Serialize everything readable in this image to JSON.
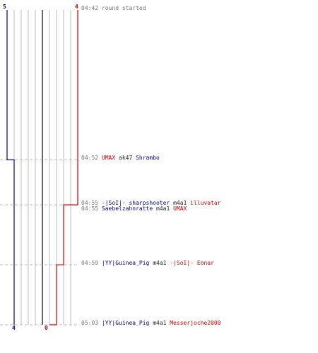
{
  "chart_data": {
    "type": "line",
    "title": "",
    "colors": {
      "team_blue": "#00008b",
      "team_red": "#cc0000",
      "grid": "#bbbbbb",
      "center": "#666666"
    },
    "scores": {
      "blue_start": "5",
      "red_start": "4",
      "blue_end": "4",
      "red_end": "0"
    },
    "event_times_sec": [
      282,
      292,
      295,
      299,
      303
    ],
    "blue_steps": [
      {
        "t": 282,
        "x": 0
      },
      {
        "t": 292,
        "x": 1
      }
    ],
    "red_steps": [
      {
        "t": 282,
        "x": 10
      },
      {
        "t": 295,
        "x": 8
      },
      {
        "t": 299,
        "x": 7
      },
      {
        "t": 303,
        "x": 6
      }
    ],
    "events": [
      {
        "t": 282,
        "time": "04:42",
        "parts": [
          {
            "text": "round started",
            "color": "grey"
          }
        ]
      },
      {
        "t": 292,
        "time": "04:52",
        "parts": [
          {
            "text": "UMAX",
            "color": "red"
          },
          {
            "text": "ak47",
            "color": "dark"
          },
          {
            "text": "Shrambo",
            "color": "blue"
          }
        ]
      },
      {
        "t": 295,
        "time": "04:55",
        "parts": [
          {
            "text": "-|SoI|- sharpshooter",
            "color": "blue"
          },
          {
            "text": "m4a1",
            "color": "dark"
          },
          {
            "text": "illuvatar",
            "color": "red"
          }
        ]
      },
      {
        "t": 295,
        "time": "04:55",
        "parts": [
          {
            "text": "Saebelzahnratte",
            "color": "blue"
          },
          {
            "text": "m4a1",
            "color": "dark"
          },
          {
            "text": "UMAX",
            "color": "red"
          }
        ]
      },
      {
        "t": 299,
        "time": "04:59",
        "parts": [
          {
            "text": "|YY|Guinea_Pig",
            "color": "blue"
          },
          {
            "text": "m4a1",
            "color": "dark"
          },
          {
            "text": "-|SoI|- Eonar",
            "color": "red"
          }
        ]
      },
      {
        "t": 303,
        "time": "05:03",
        "parts": [
          {
            "text": "|YY|Guinea_Pig",
            "color": "blue"
          },
          {
            "text": "m4a1",
            "color": "dark"
          },
          {
            "text": "Messerjoche2000",
            "color": "red"
          }
        ]
      }
    ]
  }
}
